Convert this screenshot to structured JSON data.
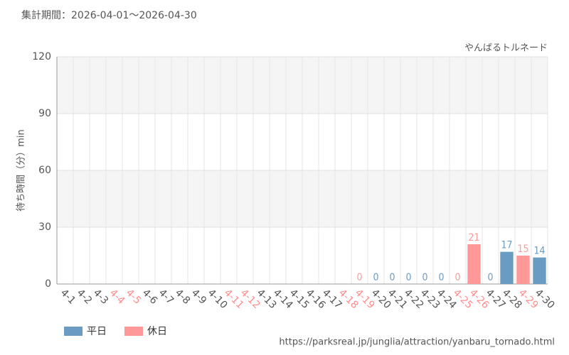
{
  "chart_data": {
    "type": "bar",
    "title": "集計期間：2026-04-01～2026-04-30",
    "subtitle": "やんばるトルネード",
    "y_label": "待ち時間（分）min",
    "source": "https://parksreal.jp/junglia/attraction/yanbaru_tornado.html",
    "categories": [
      "4-1",
      "4-2",
      "4-3",
      "4-4",
      "4-5",
      "4-6",
      "4-7",
      "4-8",
      "4-9",
      "4-10",
      "4-11",
      "4-12",
      "4-13",
      "4-14",
      "4-15",
      "4-16",
      "4-17",
      "4-18",
      "4-19",
      "4-20",
      "4-21",
      "4-22",
      "4-23",
      "4-24",
      "4-25",
      "4-26",
      "4-27",
      "4-28",
      "4-29",
      "4-30"
    ],
    "category_colors": [
      "#555555",
      "#555555",
      "#555555",
      "#ff8c8c",
      "#ff8c8c",
      "#555555",
      "#555555",
      "#555555",
      "#555555",
      "#555555",
      "#ff8c8c",
      "#ff8c8c",
      "#555555",
      "#555555",
      "#555555",
      "#555555",
      "#555555",
      "#ff8c8c",
      "#ff8c8c",
      "#555555",
      "#555555",
      "#555555",
      "#555555",
      "#555555",
      "#ff8c8c",
      "#ff8c8c",
      "#555555",
      "#555555",
      "#ff8c8c",
      "#555555"
    ],
    "series": [
      {
        "name": "平日",
        "color": "#6a9bc3",
        "values": [
          null,
          null,
          null,
          null,
          null,
          null,
          null,
          null,
          null,
          null,
          null,
          null,
          null,
          null,
          null,
          null,
          null,
          null,
          null,
          0,
          0,
          0,
          0,
          0,
          null,
          null,
          0,
          17,
          null,
          14
        ]
      },
      {
        "name": "休日",
        "color": "#ff9999",
        "values": [
          null,
          null,
          null,
          null,
          null,
          null,
          null,
          null,
          null,
          null,
          null,
          null,
          null,
          null,
          null,
          null,
          null,
          null,
          0,
          null,
          null,
          null,
          null,
          null,
          0,
          21,
          null,
          null,
          15,
          null
        ]
      }
    ],
    "ylim": [
      0,
      120
    ],
    "yticks": [
      0,
      30,
      60,
      90,
      120
    ],
    "grid": true
  }
}
